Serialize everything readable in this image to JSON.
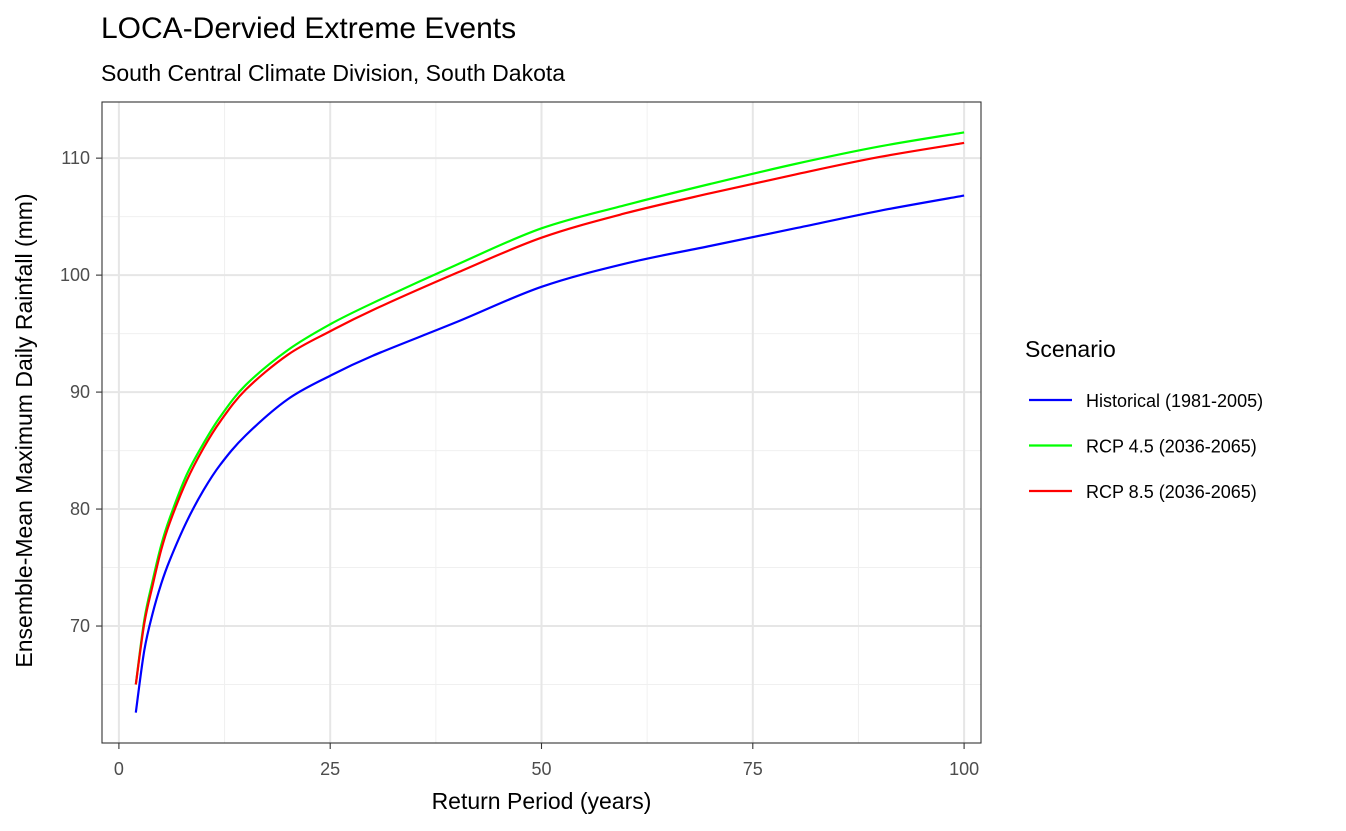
{
  "chart_data": {
    "type": "line",
    "title": "LOCA-Dervied Extreme Events",
    "subtitle": "South Central Climate Division, South Dakota",
    "xlabel": "Return Period (years)",
    "ylabel": "Ensemble-Mean Maximum Daily Rainfall (mm)",
    "xlim": [
      -2,
      102
    ],
    "ylim": [
      60,
      114.8
    ],
    "x_ticks": [
      0,
      25,
      50,
      75,
      100
    ],
    "y_ticks": [
      70,
      80,
      90,
      100,
      110
    ],
    "grid": true,
    "legend": {
      "title": "Scenario",
      "position": "right"
    },
    "x": [
      2,
      3,
      4,
      5,
      6,
      8,
      10,
      12,
      15,
      20,
      25,
      30,
      40,
      50,
      60,
      70,
      80,
      90,
      100
    ],
    "series": [
      {
        "name": "Historical (1981-2005)",
        "color": "#0000ff",
        "values": [
          62.6,
          67.9,
          71.1,
          73.6,
          75.6,
          78.9,
          81.6,
          83.8,
          86.3,
          89.4,
          91.4,
          93.1,
          96.0,
          99.0,
          101.0,
          102.5,
          104.0,
          105.5,
          106.8
        ]
      },
      {
        "name": "RCP 4.5 (2036-2065)",
        "color": "#00ff00",
        "values": [
          65.0,
          70.5,
          73.9,
          76.9,
          79.2,
          82.9,
          85.6,
          87.9,
          90.6,
          93.6,
          95.8,
          97.6,
          100.9,
          104.0,
          106.0,
          107.8,
          109.5,
          111.0,
          112.2
        ]
      },
      {
        "name": "RCP 8.5 (2036-2065)",
        "color": "#ff0000",
        "values": [
          65.0,
          70.2,
          73.5,
          76.5,
          78.8,
          82.4,
          85.2,
          87.5,
          90.2,
          93.2,
          95.2,
          97.0,
          100.2,
          103.2,
          105.3,
          107.0,
          108.6,
          110.1,
          111.3
        ]
      }
    ]
  }
}
